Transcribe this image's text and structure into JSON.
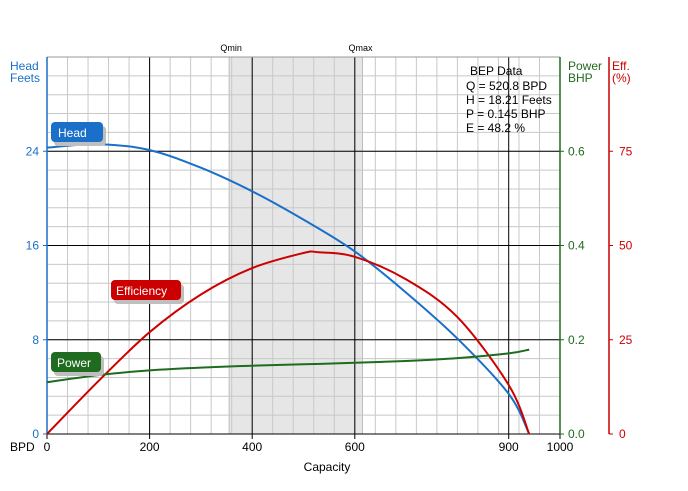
{
  "chart_data": {
    "type": "line",
    "xlabel": "Capacity",
    "x_unit": "BPD",
    "xlim": [
      0,
      1000
    ],
    "x_ticks": [
      0,
      200,
      400,
      600,
      900,
      1000
    ],
    "x_tick_labels": [
      "0",
      "200",
      "400",
      "600",
      "900",
      "1000"
    ],
    "y_axes": {
      "head": {
        "label_line1": "Head",
        "label_line2": "Feets",
        "range": [
          0,
          32
        ],
        "ticks": [
          0,
          8,
          16,
          24
        ],
        "tick_labels": [
          "0",
          "8",
          "16",
          "24"
        ],
        "color": "#1a6fc9"
      },
      "power": {
        "label_line1": "Power",
        "label_line2": "BHP",
        "range": [
          0,
          0.8
        ],
        "ticks": [
          0,
          0.2,
          0.4,
          0.6
        ],
        "tick_labels": [
          "0.0",
          "0.2",
          "0.4",
          "0.6"
        ],
        "color": "#1f6b1f"
      },
      "efficiency": {
        "label_line1": "Eff.",
        "label_line2": "(%)",
        "range": [
          0,
          100
        ],
        "ticks": [
          0,
          25,
          50,
          75
        ],
        "tick_labels": [
          "0",
          "25",
          "50",
          "75"
        ],
        "color": "#cc0000"
      }
    },
    "range_band": {
      "min": 355,
      "max": 615,
      "min_label": "Qmin",
      "max_label": "Qmax"
    },
    "series": [
      {
        "name": "Head",
        "axis": "head",
        "color": "#1a6fc9",
        "x": [
          0,
          100,
          200,
          300,
          400,
          500,
          600,
          700,
          800,
          900,
          940
        ],
        "values": [
          24.3,
          24.6,
          24.1,
          22.6,
          20.6,
          18.2,
          15.5,
          12.0,
          8.1,
          3.4,
          0.0
        ]
      },
      {
        "name": "Efficiency",
        "axis": "efficiency",
        "color": "#cc0000",
        "x": [
          0,
          100,
          200,
          300,
          400,
          500,
          530,
          600,
          700,
          800,
          900,
          940
        ],
        "values": [
          0,
          14,
          27,
          37,
          44,
          48,
          48.2,
          47,
          41,
          31,
          13,
          0
        ]
      },
      {
        "name": "Power",
        "axis": "power",
        "color": "#1f6b1f",
        "x": [
          0,
          100,
          200,
          300,
          400,
          500,
          600,
          700,
          800,
          900,
          940
        ],
        "values": [
          0.11,
          0.125,
          0.135,
          0.141,
          0.145,
          0.148,
          0.151,
          0.155,
          0.161,
          0.171,
          0.179
        ]
      }
    ],
    "series_labels": {
      "head": "Head",
      "efficiency": "Efficiency",
      "power": "Power"
    },
    "bep": {
      "title": "BEP Data",
      "q": "Q = 520.8 BPD",
      "h": "H = 18.21 Feets",
      "p": "P = 0.145 BHP",
      "e": "E = 48.2 %"
    },
    "grid": true
  }
}
